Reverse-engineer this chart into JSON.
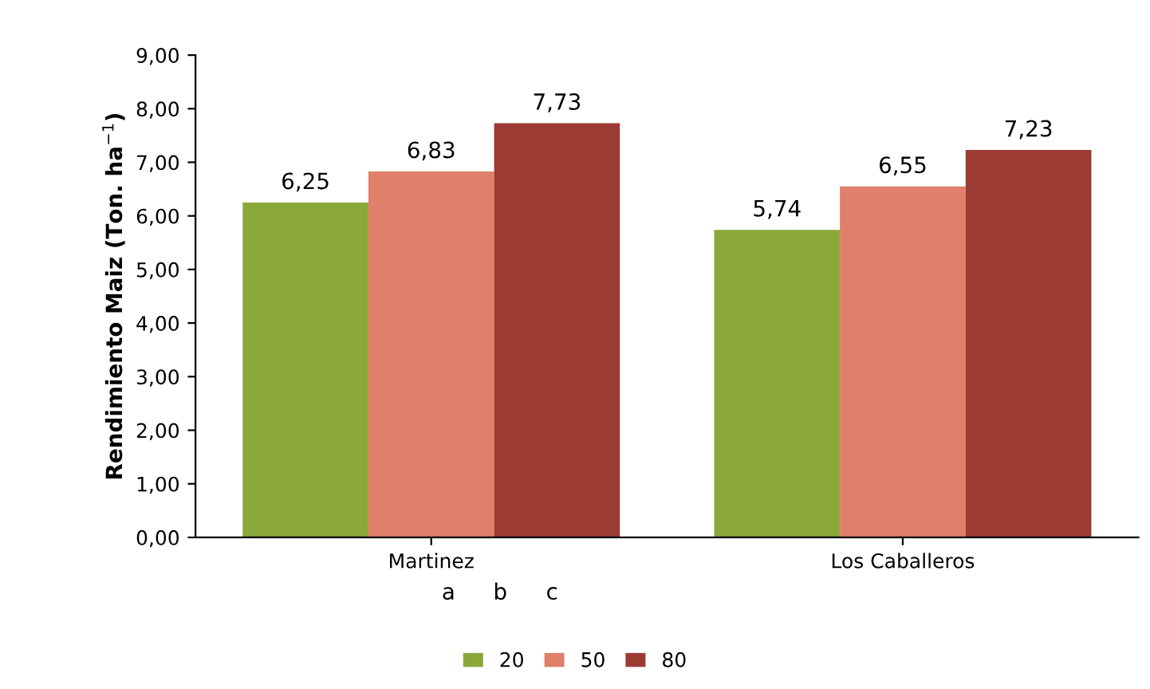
{
  "chart_data": {
    "type": "bar",
    "ylabel": "Rendimiento Maiz (Ton. ha$^{−1}$)",
    "categories": [
      "Martinez",
      "Los Caballeros"
    ],
    "series": [
      {
        "name": "20",
        "color": "#8aa83a",
        "values": [
          6.25,
          5.74
        ],
        "value_labels": [
          "6,25",
          "5,74"
        ]
      },
      {
        "name": "50",
        "color": "#e0806a",
        "values": [
          6.83,
          6.55
        ],
        "value_labels": [
          "6,83",
          "6,55"
        ]
      },
      {
        "name": "80",
        "color": "#9c3a34",
        "values": [
          7.73,
          7.23
        ],
        "value_labels": [
          "7,73",
          "7,23"
        ]
      }
    ],
    "ylim": [
      0,
      9
    ],
    "yticks": [
      {
        "value": 0,
        "label": "0,00"
      },
      {
        "value": 1,
        "label": "1,00"
      },
      {
        "value": 2,
        "label": "2,00"
      },
      {
        "value": 3,
        "label": "3,00"
      },
      {
        "value": 4,
        "label": "4,00"
      },
      {
        "value": 5,
        "label": "5,00"
      },
      {
        "value": 6,
        "label": "6,00"
      },
      {
        "value": 7,
        "label": "7,00"
      },
      {
        "value": 8,
        "label": "8,00"
      },
      {
        "value": 9,
        "label": "9,00"
      }
    ],
    "annotations": [
      "a",
      "b",
      "c"
    ],
    "legend": "bottom",
    "grid": false
  }
}
